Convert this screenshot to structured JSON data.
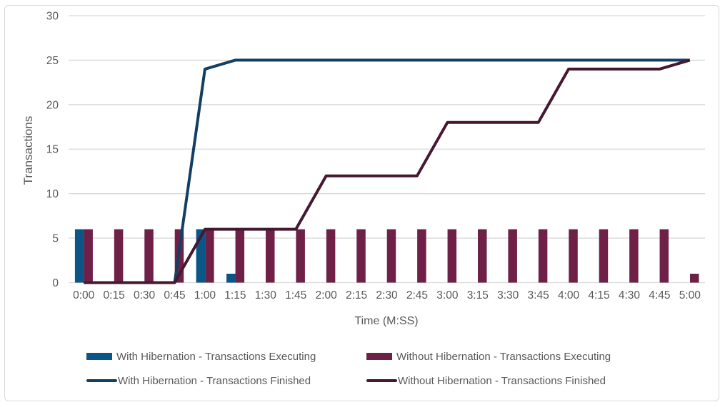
{
  "chart_data": {
    "type": "bar",
    "subtype": "combo-bar-line",
    "title": "",
    "xlabel": "Time (M:SS)",
    "ylabel": "Transactions",
    "ylim": [
      0,
      30
    ],
    "yticks": [
      0,
      5,
      10,
      15,
      20,
      25,
      30
    ],
    "grid": true,
    "legend_position": "bottom",
    "categories": [
      "0:00",
      "0:15",
      "0:30",
      "0:45",
      "1:00",
      "1:15",
      "1:30",
      "1:45",
      "2:00",
      "2:15",
      "2:30",
      "2:45",
      "3:00",
      "3:15",
      "3:30",
      "3:45",
      "4:00",
      "4:15",
      "4:30",
      "4:45",
      "5:00"
    ],
    "series": [
      {
        "name": "With Hibernation - Transactions Executing",
        "type": "bar",
        "color": "#0b5587",
        "values": [
          6,
          0,
          0,
          0,
          6,
          1,
          0,
          0,
          0,
          0,
          0,
          0,
          0,
          0,
          0,
          0,
          0,
          0,
          0,
          0,
          0
        ]
      },
      {
        "name": "Without Hibernation - Transactions Executing",
        "type": "bar",
        "color": "#6e2046",
        "values": [
          6,
          6,
          6,
          6,
          6,
          6,
          6,
          6,
          6,
          6,
          6,
          6,
          6,
          6,
          6,
          6,
          6,
          6,
          6,
          6,
          1
        ]
      },
      {
        "name": "With Hibernation - Transactions Finished",
        "type": "line",
        "color": "#123f62",
        "values": [
          0,
          0,
          0,
          0,
          24,
          25,
          25,
          25,
          25,
          25,
          25,
          25,
          25,
          25,
          25,
          25,
          25,
          25,
          25,
          25,
          25
        ]
      },
      {
        "name": "Without Hibernation - Transactions Finished",
        "type": "line",
        "color": "#451831",
        "values": [
          0,
          0,
          0,
          0,
          6,
          6,
          6,
          6,
          12,
          12,
          12,
          12,
          18,
          18,
          18,
          18,
          24,
          24,
          24,
          24,
          25
        ]
      }
    ],
    "colors": {
      "gridline": "#d9d9d9",
      "tick_text": "#595959",
      "frame_border": "#d9d9d9",
      "background": "#ffffff"
    }
  }
}
